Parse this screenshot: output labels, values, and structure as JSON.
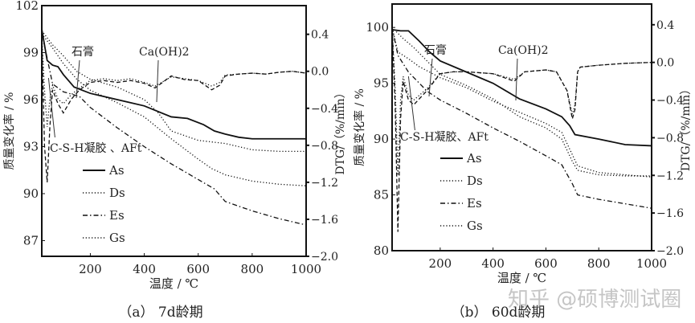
{
  "watermark": "知乎 @硕博测试圈",
  "chart_data": [
    {
      "type": "line",
      "title": "（a） 7d龄期",
      "xlabel": "温度 / ℃",
      "ylabel": "质量变化率 / %",
      "y2label": "DTG/（%/min）",
      "xlim": [
        20,
        1000
      ],
      "ylim": [
        86,
        102
      ],
      "y2lim": [
        -2.0,
        0.71
      ],
      "xticks": [
        200,
        400,
        600,
        800,
        1000
      ],
      "yticks": [
        87,
        90,
        93,
        96,
        99,
        102
      ],
      "y2ticks": [
        -2.0,
        -1.6,
        -1.2,
        -0.8,
        -0.4,
        0.0,
        0.4
      ],
      "annotations": [
        {
          "text": "石膏",
          "x": 160
        },
        {
          "text": "Ca(OH)2",
          "x": 440
        },
        {
          "text": "C-S-H凝胶 、AFt",
          "x": 45
        }
      ],
      "legend": [
        "As",
        "Ds",
        "Es",
        "Gs"
      ],
      "legend_placement": "center-left",
      "series": [
        {
          "name": "As",
          "style": "solid",
          "axis": "left",
          "x": [
            20,
            40,
            60,
            80,
            100,
            140,
            170,
            200,
            300,
            400,
            500,
            560,
            620,
            660,
            700,
            750,
            800,
            1000
          ],
          "y": [
            100.5,
            98.5,
            98.2,
            98.1,
            97.6,
            96.8,
            96.6,
            96.4,
            96.0,
            95.6,
            94.9,
            94.8,
            94.4,
            94.0,
            93.8,
            93.6,
            93.5,
            93.5
          ]
        },
        {
          "name": "Ds",
          "style": "dotted",
          "axis": "left",
          "x": [
            20,
            60,
            100,
            150,
            200,
            300,
            400,
            500,
            600,
            650,
            700,
            800,
            900,
            1000
          ],
          "y": [
            100.2,
            99.3,
            98.3,
            97.3,
            96.6,
            95.8,
            94.9,
            93.5,
            92.2,
            91.6,
            91.2,
            90.8,
            90.6,
            90.5
          ]
        },
        {
          "name": "Es",
          "style": "dashdot",
          "axis": "left",
          "x": [
            20,
            60,
            100,
            160,
            200,
            300,
            400,
            500,
            600,
            660,
            700,
            800,
            900,
            1000
          ],
          "y": [
            100.3,
            97.0,
            96.5,
            96.2,
            95.5,
            94.2,
            93.0,
            91.9,
            90.9,
            90.3,
            89.5,
            88.9,
            88.4,
            88.0
          ]
        },
        {
          "name": "Gs",
          "style": "dotted",
          "axis": "left",
          "x": [
            20,
            60,
            100,
            150,
            200,
            300,
            400,
            450,
            500,
            600,
            700,
            800,
            900,
            1000
          ],
          "y": [
            100.4,
            99.5,
            98.8,
            97.8,
            97.3,
            96.8,
            96.0,
            95.2,
            94.0,
            93.4,
            93.2,
            92.8,
            92.7,
            92.7
          ]
        },
        {
          "name": "As DTG",
          "style": "dotted",
          "axis": "right",
          "x": [
            20,
            30,
            40,
            50,
            60,
            80,
            100,
            130,
            160,
            200,
            250,
            300,
            350,
            400,
            440,
            500,
            550,
            600,
            650,
            680,
            700,
            750,
            800,
            850,
            900,
            950,
            1000
          ],
          "y": [
            0.4,
            -0.2,
            -0.6,
            -0.3,
            -0.15,
            -0.3,
            -0.35,
            -0.25,
            -0.18,
            -0.1,
            -0.08,
            -0.1,
            -0.08,
            -0.12,
            -0.16,
            -0.06,
            -0.08,
            -0.1,
            -0.16,
            -0.12,
            -0.04,
            -0.03,
            -0.02,
            -0.03,
            -0.01,
            0,
            -0.02
          ]
        },
        {
          "name": "Es DTG",
          "style": "dashed",
          "axis": "right",
          "x": [
            20,
            30,
            40,
            50,
            60,
            80,
            100,
            130,
            160,
            200,
            250,
            300,
            350,
            400,
            440,
            500,
            550,
            600,
            650,
            680,
            700,
            750,
            800,
            850,
            900,
            950,
            1000
          ],
          "y": [
            0.4,
            -0.8,
            -1.2,
            -0.6,
            -0.2,
            -0.35,
            -0.45,
            -0.3,
            -0.2,
            -0.12,
            -0.1,
            -0.12,
            -0.1,
            -0.13,
            -0.18,
            -0.05,
            -0.09,
            -0.1,
            -0.2,
            -0.15,
            -0.05,
            -0.03,
            -0.02,
            -0.03,
            -0.01,
            0,
            -0.02
          ]
        }
      ]
    },
    {
      "type": "line",
      "title": "（b） 60d龄期",
      "xlabel": "温度 / ℃",
      "ylabel": "质量变化率 / %",
      "y2label": "DTG/（%/min）",
      "xlim": [
        18,
        1000
      ],
      "ylim": [
        80,
        102.1
      ],
      "y2lim": [
        -2.0,
        0.62
      ],
      "xticks": [
        200,
        400,
        600,
        800,
        1000
      ],
      "yticks": [
        80,
        85,
        90,
        95,
        100
      ],
      "y2ticks": [
        -2.0,
        -1.6,
        -1.2,
        -0.8,
        -0.4,
        0.0,
        0.4
      ],
      "annotations": [
        {
          "text": "石膏",
          "x": 170
        },
        {
          "text": "Ca(OH)2",
          "x": 480
        },
        {
          "text": "C-S-H凝胶、AFt",
          "x": 80
        }
      ],
      "legend": [
        "As",
        "Ds",
        "Es",
        "Gs"
      ],
      "legend_placement": "center-left",
      "series": [
        {
          "name": "As",
          "style": "solid",
          "axis": "left",
          "x": [
            18,
            50,
            80,
            120,
            160,
            200,
            300,
            400,
            500,
            600,
            660,
            690,
            710,
            800,
            900,
            1000
          ],
          "y": [
            99.8,
            99.7,
            99.7,
            98.8,
            97.8,
            97.0,
            96.0,
            95.0,
            93.6,
            92.7,
            92.0,
            91.2,
            90.4,
            90.0,
            89.5,
            89.4
          ]
        },
        {
          "name": "Ds",
          "style": "dotted",
          "axis": "left",
          "x": [
            18,
            60,
            100,
            150,
            200,
            300,
            400,
            500,
            600,
            660,
            700,
            720,
            800,
            900,
            1000
          ],
          "y": [
            100,
            99,
            98.2,
            97,
            95.8,
            94.8,
            93.6,
            92.0,
            91.0,
            90.0,
            88.0,
            87.2,
            86.8,
            86.7,
            86.7
          ]
        },
        {
          "name": "Es",
          "style": "dashdot",
          "axis": "left",
          "x": [
            18,
            40,
            80,
            150,
            200,
            300,
            400,
            500,
            600,
            660,
            700,
            720,
            800,
            900,
            1000
          ],
          "y": [
            100,
            97.5,
            96,
            94.3,
            93.5,
            92.3,
            91.0,
            89.8,
            88.5,
            87.7,
            86.0,
            85.0,
            84.6,
            84.2,
            83.8
          ]
        },
        {
          "name": "Gs",
          "style": "dotted",
          "axis": "left",
          "x": [
            18,
            40,
            80,
            120,
            200,
            300,
            400,
            500,
            600,
            660,
            700,
            720,
            800,
            900,
            1000
          ],
          "y": [
            100,
            97.8,
            97.2,
            96.5,
            95.5,
            94.6,
            93.4,
            92.4,
            91.4,
            90.6,
            88.6,
            87.6,
            87.0,
            86.8,
            86.6
          ]
        },
        {
          "name": "As DTG",
          "style": "dotted",
          "axis": "right",
          "x": [
            18,
            30,
            40,
            50,
            60,
            80,
            100,
            150,
            200,
            250,
            300,
            400,
            480,
            520,
            600,
            640,
            680,
            700,
            710,
            720,
            730,
            800,
            900,
            1000
          ],
          "y": [
            0.4,
            -0.3,
            -1.2,
            -0.4,
            -0.15,
            -0.35,
            -0.4,
            -0.28,
            -0.12,
            -0.1,
            -0.1,
            -0.12,
            -0.18,
            -0.1,
            -0.08,
            -0.1,
            -0.3,
            -0.55,
            -0.45,
            -0.1,
            -0.05,
            -0.03,
            -0.01,
            0
          ]
        },
        {
          "name": "Es DTG",
          "style": "dashed",
          "axis": "right",
          "x": [
            18,
            30,
            40,
            50,
            60,
            80,
            100,
            150,
            200,
            250,
            300,
            400,
            480,
            520,
            600,
            640,
            680,
            700,
            710,
            720,
            730,
            800,
            900,
            1000
          ],
          "y": [
            0.4,
            -0.5,
            -1.8,
            -0.6,
            -0.2,
            -0.4,
            -0.45,
            -0.3,
            -0.12,
            -0.1,
            -0.1,
            -0.12,
            -0.2,
            -0.1,
            -0.08,
            -0.1,
            -0.3,
            -0.6,
            -0.5,
            -0.1,
            -0.05,
            -0.03,
            -0.01,
            0
          ]
        }
      ]
    }
  ]
}
